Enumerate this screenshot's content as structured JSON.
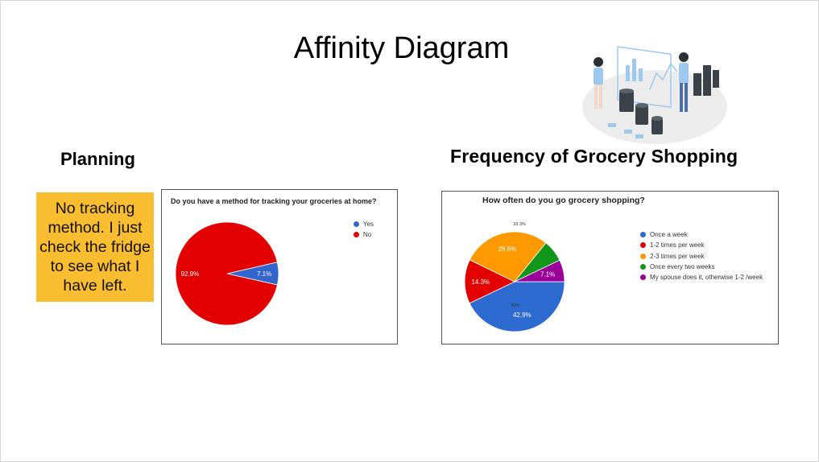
{
  "slide": {
    "title": "Affinity Diagram",
    "planning_heading": "Planning",
    "frequency_heading": "Frequency of Grocery Shopping",
    "sticky_note": "No tracking method. I just check the fridge to see what I have left."
  },
  "chart_data": [
    {
      "type": "pie",
      "title": "Do you have a method for tracking your groceries at home?",
      "labels": [
        "Yes",
        "No"
      ],
      "values": [
        7.1,
        92.9
      ],
      "colors": [
        "#3366cc",
        "#e30000"
      ],
      "slice_labels": [
        "7.1%",
        "92.9%"
      ],
      "legend_position": "right"
    },
    {
      "type": "pie",
      "title": "How often do you go grocery shopping?",
      "labels": [
        "Once a week",
        "1-2 times per week",
        "2-3 times per week",
        "Once every two weeks",
        "My spouse does it, otherwise 1-2 /week"
      ],
      "values": [
        42.9,
        14.3,
        28.6,
        7.1,
        7.1
      ],
      "colors": [
        "#2e6bd1",
        "#e30000",
        "#ff9900",
        "#109618",
        "#990099"
      ],
      "slice_labels": [
        "42.9%",
        "14.3%",
        "28.6%",
        "",
        "7.1%"
      ],
      "extra_labels": [
        "33.3%",
        "40%"
      ],
      "legend_position": "right"
    }
  ],
  "illustration": {
    "icon": "data-analysis-illustration"
  }
}
